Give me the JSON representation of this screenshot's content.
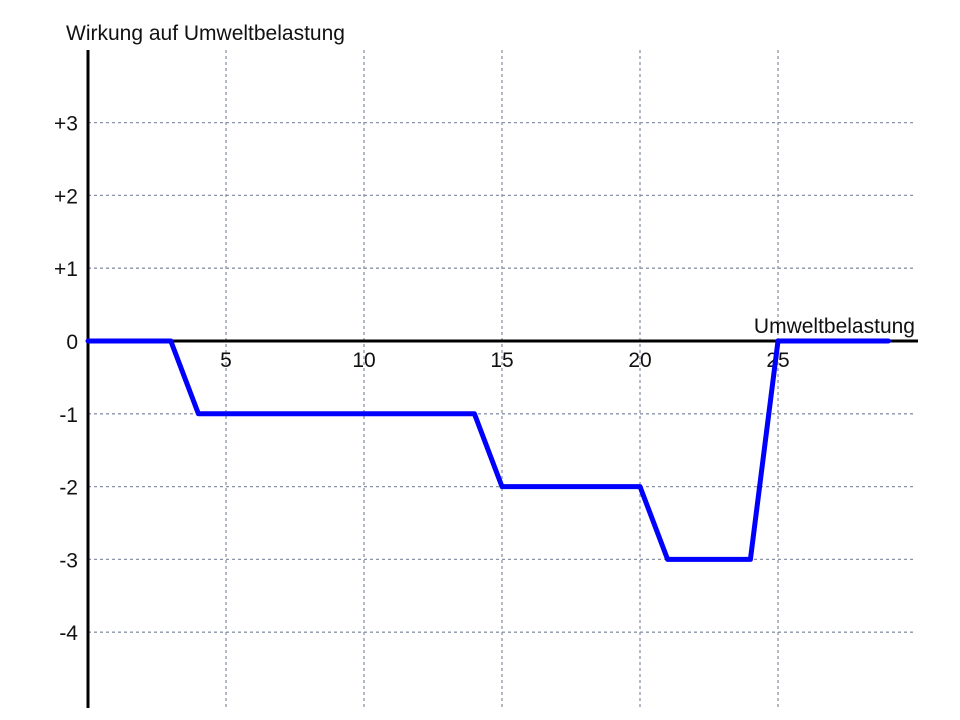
{
  "chart_data": {
    "type": "line",
    "ylabel": "Wirkung auf Umweltbelastung",
    "xlabel": "Umweltbelastung",
    "xlim": [
      0,
      30
    ],
    "ylim": [
      -5,
      4
    ],
    "x_ticks": [
      5,
      10,
      15,
      20,
      25
    ],
    "x_tick_labels": [
      "5",
      "10",
      "15",
      "20",
      "25"
    ],
    "y_ticks": [
      3,
      2,
      1,
      0,
      -1,
      -2,
      -3,
      -4
    ],
    "y_tick_labels": [
      "+3",
      "+2",
      "+1",
      "0",
      "-1",
      "-2",
      "-3",
      "-4"
    ],
    "grid": true,
    "series": [
      {
        "color": "#0000ff",
        "x": [
          0,
          3,
          4,
          14,
          15,
          20,
          21,
          24,
          25,
          29
        ],
        "y": [
          0,
          0,
          -1,
          -1,
          -2,
          -2,
          -3,
          -3,
          0,
          0
        ]
      }
    ]
  }
}
